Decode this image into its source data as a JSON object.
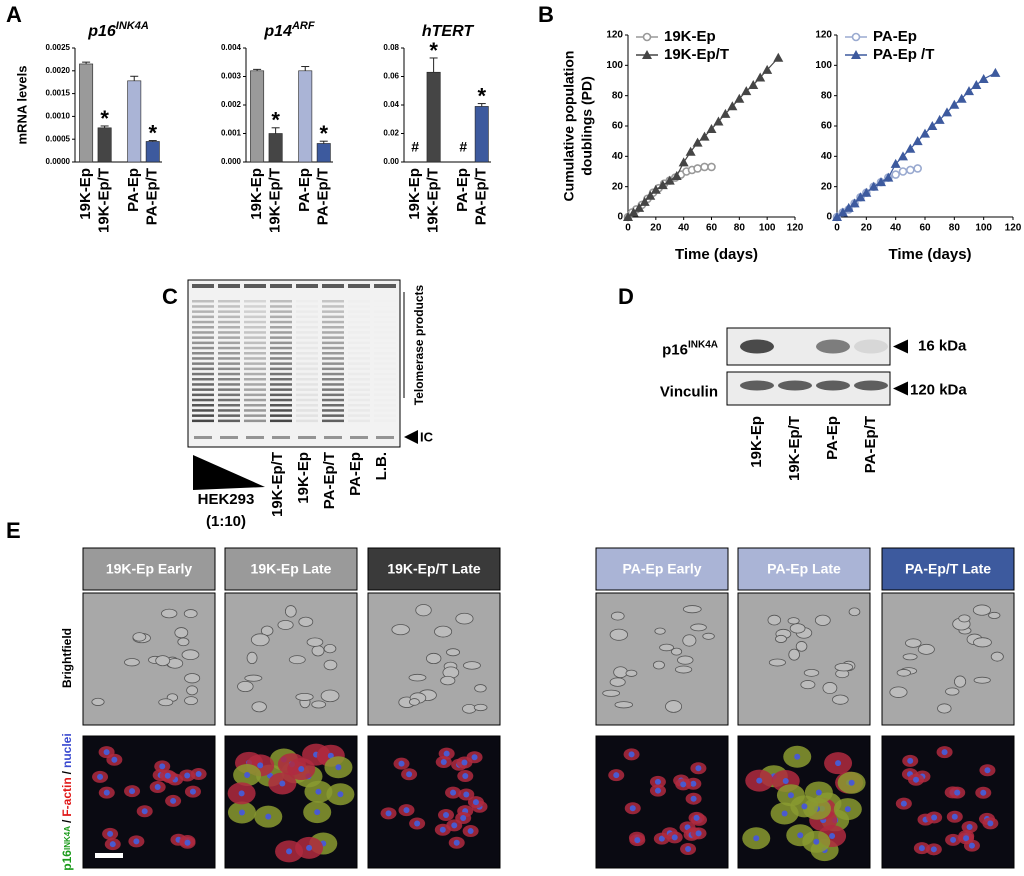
{
  "panel_labels": [
    "A",
    "B",
    "C",
    "D",
    "E"
  ],
  "chart_data": [
    {
      "type": "bar",
      "title": "p16",
      "title_sup": "INK4A",
      "ylabel": "mRNA levels",
      "categories": [
        "19K-Ep",
        "19K-Ep/T",
        "PA-Ep",
        "PA-Ep/T"
      ],
      "values": [
        0.00215,
        0.00075,
        0.00178,
        0.00045
      ],
      "errors": [
        4e-05,
        4e-05,
        0.0001,
        2e-05
      ],
      "annotations": [
        null,
        "*",
        null,
        "*"
      ],
      "colors": [
        "#9a9a9a",
        "#454545",
        "#aab4d6",
        "#3d5a9e"
      ],
      "ylim": [
        0,
        0.0025
      ],
      "yticks": [
        {
          "value": 0,
          "label": "0.0000"
        },
        {
          "value": 0.0005,
          "label": "0.0005"
        },
        {
          "value": 0.001,
          "label": "0.0010"
        },
        {
          "value": 0.0015,
          "label": "0.0015"
        },
        {
          "value": 0.002,
          "label": "0.0020"
        },
        {
          "value": 0.0025,
          "label": "0.0025"
        }
      ]
    },
    {
      "type": "bar",
      "title": "p14",
      "title_sup": "ARF",
      "categories": [
        "19K-Ep",
        "19K-Ep/T",
        "PA-Ep",
        "PA-Ep/T"
      ],
      "values": [
        0.0032,
        0.001,
        0.0032,
        0.00065
      ],
      "errors": [
        5e-05,
        0.0002,
        0.00015,
        8e-05
      ],
      "annotations": [
        null,
        "*",
        null,
        "*"
      ],
      "colors": [
        "#9a9a9a",
        "#454545",
        "#aab4d6",
        "#3d5a9e"
      ],
      "ylim": [
        0,
        0.004
      ],
      "yticks": [
        {
          "value": 0,
          "label": "0.000"
        },
        {
          "value": 0.001,
          "label": "0.001"
        },
        {
          "value": 0.002,
          "label": "0.002"
        },
        {
          "value": 0.003,
          "label": "0.003"
        },
        {
          "value": 0.004,
          "label": "0.004"
        }
      ]
    },
    {
      "type": "bar",
      "title": "hTERT",
      "categories": [
        "19K-Ep",
        "19K-Ep/T",
        "PA-Ep",
        "PA-Ep/T"
      ],
      "values": [
        0,
        0.063,
        0,
        0.039
      ],
      "errors": [
        0,
        0.01,
        0,
        0.002
      ],
      "annotations": [
        "#",
        "*",
        "#",
        "*"
      ],
      "colors": [
        "#9a9a9a",
        "#454545",
        "#aab4d6",
        "#3d5a9e"
      ],
      "ylim": [
        0,
        0.08
      ],
      "yticks": [
        {
          "value": 0,
          "label": "0.00"
        },
        {
          "value": 0.02,
          "label": "0.02"
        },
        {
          "value": 0.04,
          "label": "0.04"
        },
        {
          "value": 0.06,
          "label": "0.06"
        },
        {
          "value": 0.08,
          "label": "0.08"
        }
      ]
    },
    {
      "type": "line",
      "ylabel": [
        "Cumulative population",
        "doublings (PD)"
      ],
      "xlabel": "Time (days)",
      "xlim": [
        0,
        120
      ],
      "xticks": [
        0,
        20,
        40,
        60,
        80,
        100,
        120
      ],
      "ylim": [
        0,
        120
      ],
      "yticks": [
        0,
        20,
        40,
        60,
        80,
        100,
        120
      ],
      "series": [
        {
          "name": "19K-Ep",
          "color": "#999999",
          "marker": "open-circle",
          "x": [
            0,
            3,
            6,
            10,
            14,
            18,
            22,
            26,
            30,
            34,
            38,
            42,
            46,
            50,
            55,
            60
          ],
          "values": [
            0,
            3,
            5,
            8,
            12,
            16,
            19,
            22,
            24,
            26,
            28,
            30,
            31,
            32,
            33,
            33
          ]
        },
        {
          "name": "19K-Ep/T",
          "color": "#454545",
          "marker": "triangle",
          "x": [
            0,
            4,
            8,
            12,
            16,
            20,
            25,
            30,
            35,
            40,
            45,
            50,
            55,
            60,
            65,
            70,
            75,
            80,
            85,
            90,
            95,
            100,
            108
          ],
          "values": [
            0,
            3,
            6,
            10,
            14,
            18,
            21,
            24,
            27,
            36,
            43,
            49,
            53,
            58,
            63,
            68,
            73,
            78,
            83,
            87,
            92,
            97,
            105
          ]
        }
      ]
    },
    {
      "type": "line",
      "xlabel": "Time (days)",
      "xlim": [
        0,
        120
      ],
      "xticks": [
        0,
        20,
        40,
        60,
        80,
        100,
        120
      ],
      "ylim": [
        0,
        120
      ],
      "yticks": [
        0,
        20,
        40,
        60,
        80,
        100,
        120
      ],
      "series": [
        {
          "name": "PA-Ep",
          "color": "#9aaad0",
          "marker": "open-circle",
          "x": [
            0,
            4,
            8,
            12,
            16,
            20,
            25,
            30,
            35,
            40,
            45,
            50,
            55
          ],
          "values": [
            0,
            3,
            5,
            9,
            13,
            16,
            20,
            23,
            26,
            28,
            30,
            31,
            32
          ]
        },
        {
          "name": "PA-Ep /T",
          "color": "#3d5a9e",
          "marker": "triangle",
          "x": [
            0,
            4,
            8,
            12,
            16,
            20,
            25,
            30,
            35,
            40,
            45,
            50,
            55,
            60,
            65,
            70,
            75,
            80,
            85,
            90,
            95,
            100,
            108
          ],
          "values": [
            0,
            3,
            6,
            9,
            13,
            16,
            20,
            23,
            26,
            35,
            40,
            45,
            50,
            55,
            60,
            64,
            69,
            74,
            78,
            83,
            87,
            91,
            95
          ]
        }
      ]
    }
  ],
  "gel": {
    "bracket_label": "Telomerase products",
    "ic_label": "IC",
    "gradient_label": "HEK293",
    "dilution_label": "(1:10)",
    "lanes": [
      "19K-Ep/T",
      "19K-Ep",
      "PA-Ep/T",
      "PA-Ep",
      "L.B."
    ]
  },
  "western": {
    "rows": [
      {
        "label": "p16",
        "label_sup": "INK4A",
        "size": "16 kDa"
      },
      {
        "label": "Vinculin",
        "size": "120 kDa"
      }
    ],
    "lanes": [
      "19K-Ep",
      "19K-Ep/T",
      "PA-Ep",
      "PA-Ep/T"
    ]
  },
  "microscopy": {
    "headers": [
      "19K-Ep Early",
      "19K-Ep Late",
      "19K-Ep/T Late",
      "PA-Ep Early",
      "PA-Ep Late",
      "PA-Ep/T Late"
    ],
    "row_label": "Brightfield",
    "stain_label": [
      "p16",
      "INK4A",
      "/",
      "F-actin",
      "/",
      "nuclei"
    ]
  }
}
